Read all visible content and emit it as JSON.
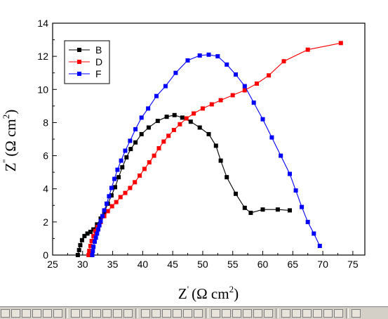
{
  "chart_data": {
    "type": "scatter",
    "title": "",
    "xlabel": "Z' (Ω cm²)",
    "ylabel": "Z'' (Ω cm²)",
    "xlabel_parts": {
      "main": "Z",
      "prime": "'",
      "unit_open": "(Ω cm",
      "exp": "2",
      "unit_close": ")"
    },
    "ylabel_parts": {
      "main": "Z",
      "prime": "''",
      "unit_open": "(Ω cm",
      "exp": "2",
      "unit_close": ")"
    },
    "xlim": [
      25,
      77
    ],
    "ylim": [
      0,
      14
    ],
    "xticks": [
      25,
      30,
      35,
      40,
      45,
      50,
      55,
      60,
      65,
      70,
      75
    ],
    "yticks": [
      0,
      2,
      4,
      6,
      8,
      10,
      12,
      14
    ],
    "grid": false,
    "legend_position": "top-left",
    "series": [
      {
        "name": "B",
        "color": "#000000",
        "points": [
          [
            29.2,
            0.0
          ],
          [
            29.4,
            0.3
          ],
          [
            29.6,
            0.6
          ],
          [
            29.9,
            0.9
          ],
          [
            30.3,
            1.15
          ],
          [
            30.8,
            1.3
          ],
          [
            31.3,
            1.4
          ],
          [
            31.8,
            1.55
          ],
          [
            32.4,
            1.85
          ],
          [
            33.0,
            2.2
          ],
          [
            33.6,
            2.6
          ],
          [
            34.2,
            3.1
          ],
          [
            34.8,
            3.6
          ],
          [
            35.4,
            4.1
          ],
          [
            36.0,
            4.7
          ],
          [
            36.6,
            5.3
          ],
          [
            37.3,
            5.9
          ],
          [
            38.0,
            6.4
          ],
          [
            38.8,
            6.8
          ],
          [
            39.8,
            7.3
          ],
          [
            41.0,
            7.7
          ],
          [
            42.5,
            8.1
          ],
          [
            44.0,
            8.35
          ],
          [
            45.3,
            8.45
          ],
          [
            46.6,
            8.3
          ],
          [
            48.0,
            8.05
          ],
          [
            49.5,
            7.7
          ],
          [
            51.0,
            7.3
          ],
          [
            52.2,
            6.6
          ],
          [
            53.0,
            5.7
          ],
          [
            54.0,
            4.7
          ],
          [
            55.5,
            3.7
          ],
          [
            57.0,
            2.85
          ],
          [
            58.0,
            2.55
          ],
          [
            60.0,
            2.75
          ],
          [
            62.5,
            2.75
          ],
          [
            64.5,
            2.7
          ]
        ]
      },
      {
        "name": "D",
        "color": "#ff0000",
        "points": [
          [
            31.0,
            0.0
          ],
          [
            31.1,
            0.25
          ],
          [
            31.3,
            0.55
          ],
          [
            31.5,
            0.85
          ],
          [
            31.8,
            1.15
          ],
          [
            32.1,
            1.45
          ],
          [
            32.5,
            1.7
          ],
          [
            33.0,
            2.0
          ],
          [
            33.6,
            2.35
          ],
          [
            34.2,
            2.65
          ],
          [
            34.9,
            2.95
          ],
          [
            35.6,
            3.2
          ],
          [
            36.3,
            3.5
          ],
          [
            37.1,
            3.75
          ],
          [
            37.9,
            4.05
          ],
          [
            38.7,
            4.4
          ],
          [
            39.5,
            4.8
          ],
          [
            40.3,
            5.2
          ],
          [
            41.1,
            5.6
          ],
          [
            41.9,
            6.0
          ],
          [
            42.7,
            6.45
          ],
          [
            43.5,
            6.85
          ],
          [
            44.3,
            7.2
          ],
          [
            45.2,
            7.55
          ],
          [
            46.2,
            7.9
          ],
          [
            47.3,
            8.25
          ],
          [
            48.5,
            8.55
          ],
          [
            50.0,
            8.85
          ],
          [
            51.5,
            9.1
          ],
          [
            53.0,
            9.35
          ],
          [
            55.0,
            9.65
          ],
          [
            57.0,
            9.95
          ],
          [
            59.0,
            10.35
          ],
          [
            61.0,
            10.85
          ],
          [
            63.5,
            11.7
          ],
          [
            67.5,
            12.4
          ],
          [
            73.0,
            12.8
          ]
        ]
      },
      {
        "name": "F",
        "color": "#0000ff",
        "points": [
          [
            31.6,
            0.0
          ],
          [
            31.7,
            0.25
          ],
          [
            31.8,
            0.5
          ],
          [
            32.0,
            0.8
          ],
          [
            32.2,
            1.05
          ],
          [
            32.4,
            1.3
          ],
          [
            32.6,
            1.55
          ],
          [
            32.8,
            1.8
          ],
          [
            33.0,
            2.05
          ],
          [
            33.3,
            2.35
          ],
          [
            33.6,
            2.7
          ],
          [
            34.0,
            3.1
          ],
          [
            34.4,
            3.55
          ],
          [
            34.8,
            4.05
          ],
          [
            35.3,
            4.6
          ],
          [
            35.8,
            5.15
          ],
          [
            36.4,
            5.7
          ],
          [
            37.1,
            6.3
          ],
          [
            37.9,
            6.9
          ],
          [
            38.8,
            7.6
          ],
          [
            39.8,
            8.3
          ],
          [
            40.9,
            8.85
          ],
          [
            42.3,
            9.6
          ],
          [
            43.8,
            10.2
          ],
          [
            45.5,
            11.0
          ],
          [
            47.5,
            11.75
          ],
          [
            49.5,
            12.05
          ],
          [
            51.0,
            12.1
          ],
          [
            52.5,
            12.0
          ],
          [
            54.0,
            11.5
          ],
          [
            55.5,
            10.9
          ],
          [
            57.0,
            10.2
          ],
          [
            58.5,
            9.2
          ],
          [
            60.0,
            8.2
          ],
          [
            61.5,
            7.1
          ],
          [
            63.0,
            6.0
          ],
          [
            64.5,
            4.9
          ],
          [
            65.5,
            3.9
          ],
          [
            66.5,
            2.9
          ],
          [
            67.5,
            2.0
          ],
          [
            68.5,
            1.3
          ],
          [
            69.5,
            0.55
          ]
        ]
      }
    ]
  },
  "toolbar": {
    "background": "#d4d0c8"
  }
}
